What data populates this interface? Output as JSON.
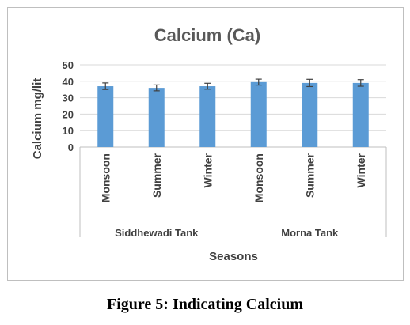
{
  "chart_data": {
    "type": "bar",
    "title": "Calcium (Ca)",
    "xlabel": "Seasons",
    "ylabel": "Calcium mg/lit",
    "ylim": [
      0,
      50
    ],
    "yticks": [
      "0",
      "10",
      "20",
      "30",
      "40",
      "50"
    ],
    "grid": true,
    "legend": "none",
    "categories": [
      "Monsoon",
      "Summer",
      "Winter",
      "Monsoon",
      "Summer",
      "Winter"
    ],
    "groups": [
      {
        "label": "Siddhewadi Tank",
        "size": 3
      },
      {
        "label": "Morna Tank",
        "size": 3
      }
    ],
    "values": [
      37,
      36,
      37,
      39.5,
      39,
      39
    ],
    "error": [
      2,
      1.8,
      1.8,
      1.8,
      2.2,
      2
    ],
    "bar_color": "#5b9bd5",
    "gridline_color": "#d9d9d9"
  },
  "caption": "Figure 5: Indicating Calcium"
}
